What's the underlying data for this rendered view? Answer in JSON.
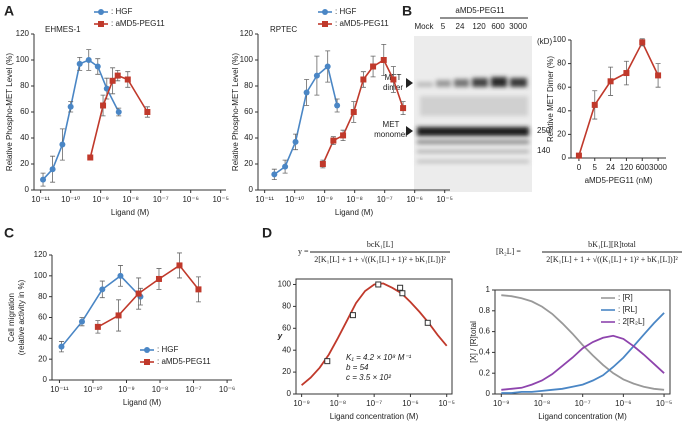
{
  "panels": [
    "A",
    "B",
    "C",
    "D"
  ],
  "blot": {
    "title": "aMD5-PEG11",
    "lanes": [
      "Mock",
      "5",
      "24",
      "120",
      "600",
      "3000"
    ],
    "unit": "(kD)",
    "dimer_label": [
      "MET",
      "dimer"
    ],
    "monomer_label": [
      "MET",
      "monomer"
    ],
    "markers": [
      "250",
      "140"
    ]
  },
  "chart_data": [
    {
      "type": "line",
      "title": "EHMES-1",
      "xlabel": "Ligand (M)",
      "ylabel": "Relative Phospho-MET Level (%)",
      "xscale": "log",
      "xlim": [
        6e-12,
        1.5e-05
      ],
      "xticks": [
        {
          "value": 1e-11,
          "label": "10⁻¹¹"
        },
        {
          "value": 1e-10,
          "label": "10⁻¹⁰"
        },
        {
          "value": 1e-09,
          "label": "10⁻⁹"
        },
        {
          "value": 1e-08,
          "label": "10⁻⁸"
        },
        {
          "value": 1e-07,
          "label": "10⁻⁷"
        },
        {
          "value": 1e-06,
          "label": "10⁻⁶"
        },
        {
          "value": 1e-05,
          "label": "10⁻⁵"
        }
      ],
      "ylim": [
        0,
        120
      ],
      "yticks": [
        0,
        20,
        40,
        60,
        80,
        100,
        120
      ],
      "legend": "upper right",
      "series": [
        {
          "name": ": HGF",
          "color": "#4a86c5",
          "marker": "circle",
          "x": [
            1.2e-11,
            2.5e-11,
            5.3e-11,
            1e-10,
            2e-10,
            4e-10,
            8e-10,
            1.6e-09,
            4e-09
          ],
          "values": [
            8,
            16,
            35,
            64,
            97,
            100,
            95,
            78,
            60
          ],
          "errors": [
            5,
            10,
            12,
            4,
            5,
            8,
            6,
            8,
            3
          ]
        },
        {
          "name": ": aMD5-PEG11",
          "color": "#c0392b",
          "marker": "square",
          "x": [
            4.5e-10,
            1.2e-09,
            2.5e-09,
            3.7e-09,
            8e-09,
            3.6e-08
          ],
          "values": [
            25,
            65,
            84,
            88,
            85,
            60
          ],
          "errors": [
            2,
            8,
            10,
            4,
            6,
            4
          ]
        }
      ]
    },
    {
      "type": "line",
      "title": "RPTEC",
      "xlabel": "Ligand (M)",
      "ylabel": "Relative Phospho-MET Level (%)",
      "xscale": "log",
      "xlim": [
        6e-12,
        1.5e-05
      ],
      "xticks": [
        {
          "value": 1e-11,
          "label": "10⁻¹¹"
        },
        {
          "value": 1e-10,
          "label": "10⁻¹⁰"
        },
        {
          "value": 1e-09,
          "label": "10⁻⁹"
        },
        {
          "value": 1e-08,
          "label": "10⁻⁸"
        },
        {
          "value": 1e-07,
          "label": "10⁻⁷"
        },
        {
          "value": 1e-06,
          "label": "10⁻⁶"
        },
        {
          "value": 1e-05,
          "label": "10⁻⁵"
        }
      ],
      "ylim": [
        0,
        120
      ],
      "yticks": [
        0,
        20,
        40,
        60,
        80,
        100,
        120
      ],
      "legend": "upper right",
      "series": [
        {
          "name": ": HGF",
          "color": "#4a86c5",
          "marker": "circle",
          "x": [
            2.1e-11,
            4.8e-11,
            1.07e-10,
            2.5e-10,
            5.5e-10,
            1.26e-09,
            2.6e-09
          ],
          "values": [
            12,
            18,
            37,
            75,
            88,
            95,
            65
          ],
          "errors": [
            4,
            5,
            6,
            10,
            15,
            12,
            5
          ]
        },
        {
          "name": ": aMD5-PEG11",
          "color": "#c0392b",
          "marker": "square",
          "x": [
            8.7e-10,
            1.95e-09,
            4.1e-09,
            9.3e-09,
            1.95e-08,
            4.1e-08,
            9.3e-08,
            1.95e-07,
            4.1e-07
          ],
          "values": [
            20,
            38,
            42,
            60,
            85,
            95,
            100,
            85,
            63
          ],
          "errors": [
            3,
            3,
            4,
            8,
            6,
            8,
            12,
            10,
            5
          ]
        }
      ]
    },
    {
      "type": "line",
      "xlabel": "aMD5-PEG11 (nM)",
      "ylabel": "Relative MET Dimer (%)",
      "categories": [
        "0",
        "5",
        "24",
        "120",
        "600",
        "3000"
      ],
      "ylim": [
        0,
        100
      ],
      "yticks": [
        0,
        20,
        40,
        60,
        80,
        100
      ],
      "series": [
        {
          "color": "#c0392b",
          "marker": "square",
          "values": [
            2,
            45,
            65,
            72,
            98,
            70
          ],
          "errors": [
            2,
            12,
            12,
            10,
            3,
            10
          ]
        }
      ]
    },
    {
      "type": "line",
      "xlabel": "Ligand (M)",
      "ylabel": [
        "Cell migration",
        "(relative activity in %)"
      ],
      "xscale": "log",
      "xlim": [
        6e-12,
        1.4e-06
      ],
      "xticks": [
        {
          "value": 1e-11,
          "label": "10⁻¹¹"
        },
        {
          "value": 1e-10,
          "label": "10⁻¹⁰"
        },
        {
          "value": 1e-09,
          "label": "10⁻⁹"
        },
        {
          "value": 1e-08,
          "label": "10⁻⁸"
        },
        {
          "value": 1e-07,
          "label": "10⁻⁷"
        },
        {
          "value": 1e-06,
          "label": "10⁻⁶"
        }
      ],
      "ylim": [
        0,
        120
      ],
      "yticks": [
        0,
        20,
        40,
        60,
        80,
        100,
        120
      ],
      "legend": "lower right",
      "series": [
        {
          "name": ": HGF",
          "color": "#4a86c5",
          "marker": "circle",
          "x": [
            1.15e-11,
            4.7e-11,
            1.9e-10,
            6.6e-10,
            2.6e-09
          ],
          "values": [
            32,
            56,
            87,
            100,
            80
          ],
          "errors": [
            5,
            4,
            8,
            10,
            8
          ]
        },
        {
          "name": ": aMD5-PEG11",
          "color": "#c0392b",
          "marker": "square",
          "x": [
            1.4e-10,
            5.8e-10,
            2.3e-09,
            9.3e-09,
            3.8e-08,
            1.4e-07
          ],
          "values": [
            51,
            62,
            83,
            97,
            110,
            87
          ],
          "errors": [
            6,
            15,
            15,
            10,
            12,
            12
          ]
        }
      ]
    },
    {
      "type": "line",
      "xlabel": "Ligand concentration (M)",
      "ylabel": "y",
      "frame": true,
      "equation": {
        "lhs": "y =",
        "numerator": "bcK₁[L]",
        "denominator": "2[K₁[L] + 1 + √((K₁[L] + 1)² + bK₁[L])]²"
      },
      "annotations": [
        "K₁ = 4.2 × 10⁸ M⁻¹",
        "b = 54",
        "c = 3.5 × 10²"
      ],
      "xscale": "log",
      "xlim": [
        7e-10,
        1.4e-05
      ],
      "xticks": [
        {
          "value": 1e-09,
          "label": "10⁻⁹"
        },
        {
          "value": 1e-08,
          "label": "10⁻⁸"
        },
        {
          "value": 1e-07,
          "label": "10⁻⁷"
        },
        {
          "value": 1e-06,
          "label": "10⁻⁶"
        },
        {
          "value": 1e-05,
          "label": "10⁻⁵"
        }
      ],
      "ylim": [
        0,
        105
      ],
      "yticks": [
        0,
        20,
        40,
        60,
        80,
        100
      ],
      "series": [
        {
          "color": "#c0392b",
          "x": [
            1e-09,
            1.78e-09,
            3.16e-09,
            5.62e-09,
            1e-08,
            1.78e-08,
            3.16e-08,
            5.62e-08,
            1e-07,
            1.78e-07,
            3.16e-07,
            5.62e-07,
            1e-06,
            1.78e-06,
            3.16e-06,
            5.62e-06,
            1e-05
          ],
          "values": [
            8,
            15,
            24,
            36,
            51,
            67,
            83,
            94,
            100,
            101,
            97,
            92,
            84,
            75,
            65,
            54,
            44
          ]
        },
        {
          "color": "#333333",
          "marker": "square-open",
          "line": false,
          "x": [
            5.1e-09,
            2.6e-08,
            1.3e-07,
            5.2e-07,
            6e-07,
            3e-06
          ],
          "values": [
            30,
            72,
            100,
            97,
            92,
            65
          ]
        }
      ]
    },
    {
      "type": "line",
      "xlabel": "Ligand concentration (M)",
      "ylabel": "[X] / [R]total",
      "frame": true,
      "equation": {
        "lhs": "[R₂L] =",
        "numerator": "bK₁[L][R]total",
        "denominator": "2[K₁[L] + 1 + √((K₁[L] + 1)² + bK₁[L])]²"
      },
      "xscale": "log",
      "xlim": [
        7e-10,
        1.4e-05
      ],
      "xticks": [
        {
          "value": 1e-09,
          "label": "10⁻⁹"
        },
        {
          "value": 1e-08,
          "label": "10⁻⁸"
        },
        {
          "value": 1e-07,
          "label": "10⁻⁷"
        },
        {
          "value": 1e-06,
          "label": "10⁻⁶"
        },
        {
          "value": 1e-05,
          "label": "10⁻⁵"
        }
      ],
      "ylim": [
        0,
        1
      ],
      "yticks": [
        0,
        0.2,
        0.4,
        0.6,
        0.8,
        1
      ],
      "legend": "upper right",
      "series": [
        {
          "name": ": [R]",
          "color": "#999999",
          "x": [
            1e-09,
            1.78e-09,
            3.16e-09,
            5.62e-09,
            1e-08,
            1.78e-08,
            3.16e-08,
            5.62e-08,
            1e-07,
            1.78e-07,
            3.16e-07,
            5.62e-07,
            1e-06,
            1.78e-06,
            3.16e-06,
            5.62e-06,
            1e-05
          ],
          "values": [
            0.95,
            0.94,
            0.92,
            0.89,
            0.84,
            0.77,
            0.68,
            0.58,
            0.47,
            0.37,
            0.28,
            0.2,
            0.14,
            0.1,
            0.07,
            0.05,
            0.04
          ]
        },
        {
          "name": ": [RL]",
          "color": "#4a86c5",
          "x": [
            1e-09,
            1.78e-09,
            3.16e-09,
            5.62e-09,
            1e-08,
            1.78e-08,
            3.16e-08,
            5.62e-08,
            1e-07,
            1.78e-07,
            3.16e-07,
            5.62e-07,
            1e-06,
            1.78e-06,
            3.16e-06,
            5.62e-06,
            1e-05
          ],
          "values": [
            0.01,
            0.01,
            0.02,
            0.02,
            0.03,
            0.04,
            0.05,
            0.07,
            0.09,
            0.13,
            0.18,
            0.26,
            0.35,
            0.46,
            0.57,
            0.68,
            0.78
          ]
        },
        {
          "name": ": 2[R₂L]",
          "color": "#8e44ad",
          "x": [
            1e-09,
            1.78e-09,
            3.16e-09,
            5.62e-09,
            1e-08,
            1.78e-08,
            3.16e-08,
            5.62e-08,
            1e-07,
            1.78e-07,
            3.16e-07,
            5.62e-07,
            1e-06,
            1.78e-06,
            3.16e-06,
            5.62e-06,
            1e-05
          ],
          "values": [
            0.04,
            0.05,
            0.06,
            0.09,
            0.13,
            0.19,
            0.27,
            0.35,
            0.44,
            0.5,
            0.54,
            0.56,
            0.53,
            0.46,
            0.38,
            0.29,
            0.2
          ]
        }
      ]
    }
  ]
}
